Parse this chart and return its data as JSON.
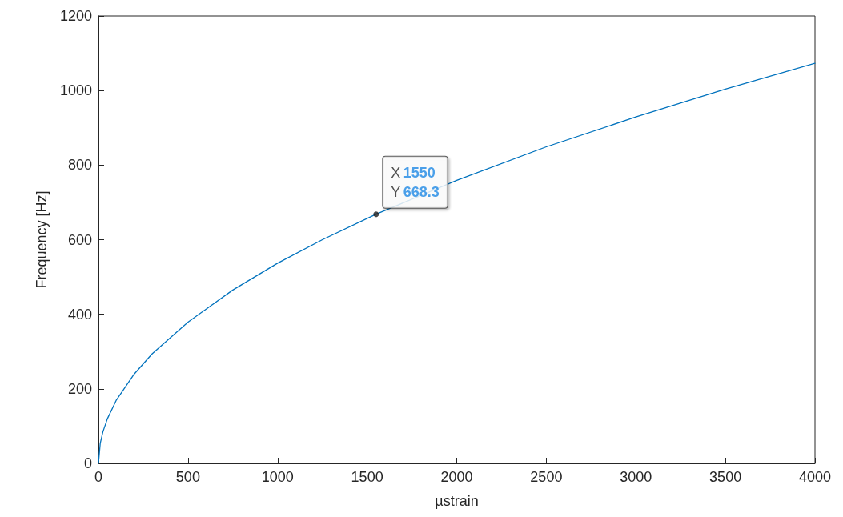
{
  "chart_data": {
    "type": "line",
    "xlabel": "µstrain",
    "ylabel": "Frequency [Hz]",
    "x": [
      0,
      10,
      25,
      50,
      100,
      200,
      300,
      500,
      750,
      1000,
      1250,
      1550,
      2000,
      2500,
      3000,
      3500,
      4000
    ],
    "series": [
      {
        "color": "#0072bd",
        "values": [
          0,
          54,
          85,
          120,
          170,
          240,
          294,
          379,
          465,
          537,
          600,
          668.3,
          759,
          849,
          929,
          1004,
          1073
        ]
      }
    ],
    "xlim": [
      0,
      4000
    ],
    "xticks": [
      0,
      500,
      1000,
      1500,
      2000,
      2500,
      3000,
      3500,
      4000
    ],
    "ylim": [
      0,
      1200
    ],
    "yticks": [
      0,
      200,
      400,
      600,
      800,
      1000,
      1200
    ],
    "grid": false,
    "marker": "none",
    "line_style": "solid",
    "annotations": [
      {
        "text": "X 1550\nY 668.3",
        "x": 1550,
        "y": 668.3
      }
    ]
  }
}
